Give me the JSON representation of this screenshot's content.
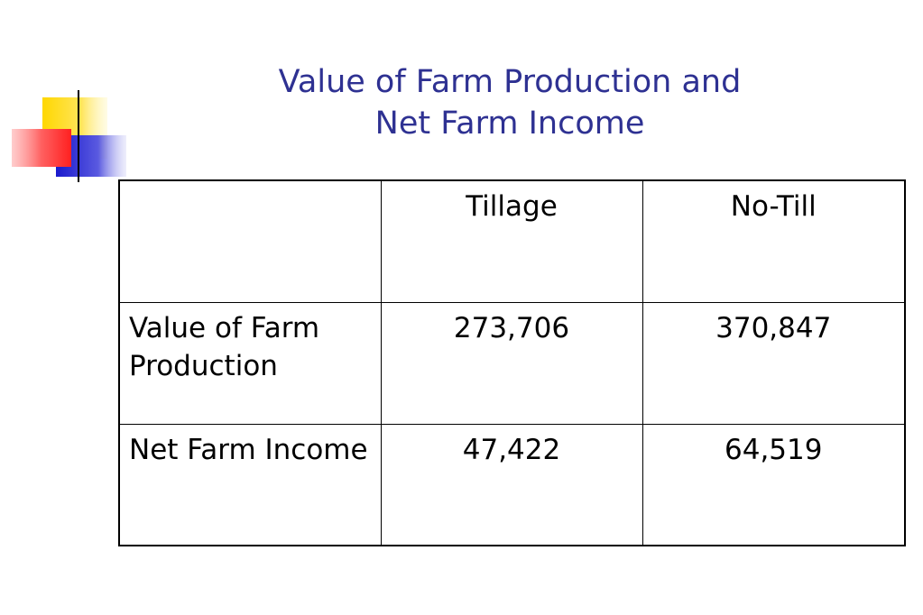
{
  "slide": {
    "title_line1": "Value of Farm Production and",
    "title_line2": "Net Farm Income"
  },
  "table": {
    "columns": [
      "",
      "Tillage",
      "No-Till"
    ],
    "rows": [
      {
        "label": "Value of Farm Production",
        "tillage": "273,706",
        "no_till": "370,847"
      },
      {
        "label": "Net Farm Income",
        "tillage": "47,422",
        "no_till": "64,519"
      }
    ]
  },
  "colors": {
    "title": "#2e3192",
    "accent_yellow": "#ffd700",
    "accent_red": "#ff3030",
    "accent_blue": "#1a1acd",
    "rule": "#808080"
  }
}
